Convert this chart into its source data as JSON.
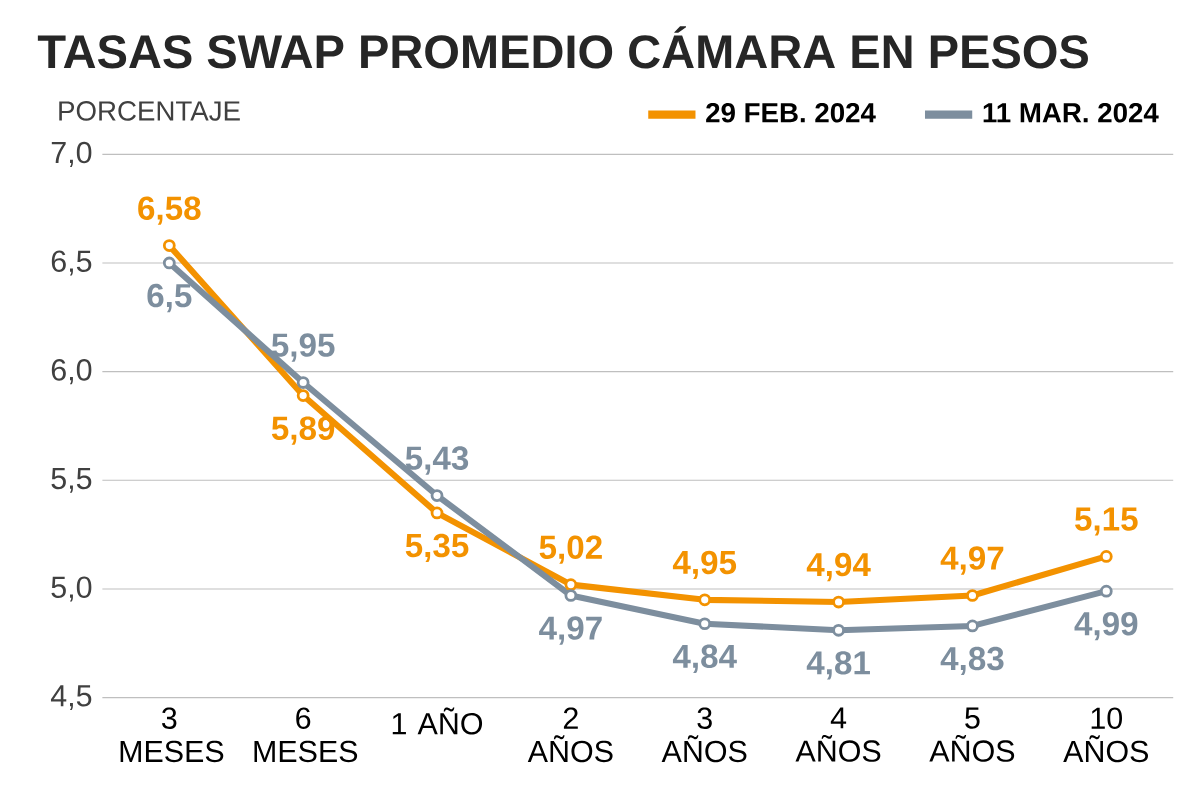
{
  "chart_data": {
    "type": "line",
    "title": "TASAS SWAP PROMEDIO CÁMARA EN PESOS",
    "subtitle": "PORCENTAJE",
    "categories": [
      "3 MESES",
      "6 MESES",
      "1 AÑO",
      "2 AÑOS",
      "3 AÑOS",
      "4 AÑOS",
      "5 AÑOS",
      "10 AÑOS"
    ],
    "series": [
      {
        "name": "29 FEB. 2024",
        "color": "#f39200",
        "values": [
          6.58,
          5.89,
          5.35,
          5.02,
          4.95,
          4.94,
          4.97,
          5.15
        ],
        "value_labels": [
          "6,58",
          "5,89",
          "5,35",
          "5,02",
          "4,95",
          "4,94",
          "4,97",
          "5,15"
        ]
      },
      {
        "name": "11 MAR. 2024",
        "color": "#7d8e9e",
        "values": [
          6.5,
          5.95,
          5.43,
          4.97,
          4.84,
          4.81,
          4.83,
          4.99
        ],
        "value_labels": [
          "6,5",
          "5,95",
          "5,43",
          "4,97",
          "4,84",
          "4,81",
          "4,83",
          "4,99"
        ]
      }
    ],
    "ylim": [
      4.5,
      7.0
    ],
    "yticks": [
      {
        "value": 4.5,
        "label": "4,5"
      },
      {
        "value": 5.0,
        "label": "5,0"
      },
      {
        "value": 5.5,
        "label": "5,5"
      },
      {
        "value": 6.0,
        "label": "6,0"
      },
      {
        "value": 6.5,
        "label": "6,5"
      },
      {
        "value": 7.0,
        "label": "7,0"
      }
    ],
    "grid": "y",
    "legend": "top right",
    "marker": "circle",
    "line_style": "solid"
  }
}
